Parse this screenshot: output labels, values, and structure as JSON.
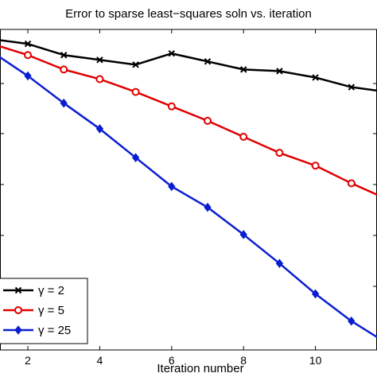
{
  "chart_data": {
    "type": "line",
    "title": "Error to sparse least−squares soln vs. iteration",
    "xlabel": "Iteration number",
    "ylabel": "",
    "xlim": [
      1,
      12
    ],
    "ylim": [
      0,
      1
    ],
    "x_ticks": [
      2,
      4,
      6,
      8,
      10
    ],
    "grid": false,
    "legend_position": "bottom-left",
    "x": [
      1,
      2,
      3,
      4,
      5,
      6,
      7,
      8,
      9,
      10,
      11,
      12
    ],
    "series": [
      {
        "name": "γ = 2",
        "color": "#000000",
        "marker": "x",
        "values": [
          0.97,
          0.955,
          0.92,
          0.905,
          0.89,
          0.925,
          0.9,
          0.875,
          0.87,
          0.85,
          0.82,
          0.805
        ]
      },
      {
        "name": "γ = 5",
        "color": "#e00000",
        "marker": "circle",
        "values": [
          0.955,
          0.92,
          0.875,
          0.845,
          0.805,
          0.76,
          0.715,
          0.665,
          0.615,
          0.575,
          0.52,
          0.47
        ]
      },
      {
        "name": "γ = 25",
        "color": "#0a1ed0",
        "marker": "diamond",
        "values": [
          0.93,
          0.855,
          0.77,
          0.69,
          0.6,
          0.51,
          0.445,
          0.36,
          0.27,
          0.175,
          0.09,
          0.02
        ]
      }
    ]
  }
}
